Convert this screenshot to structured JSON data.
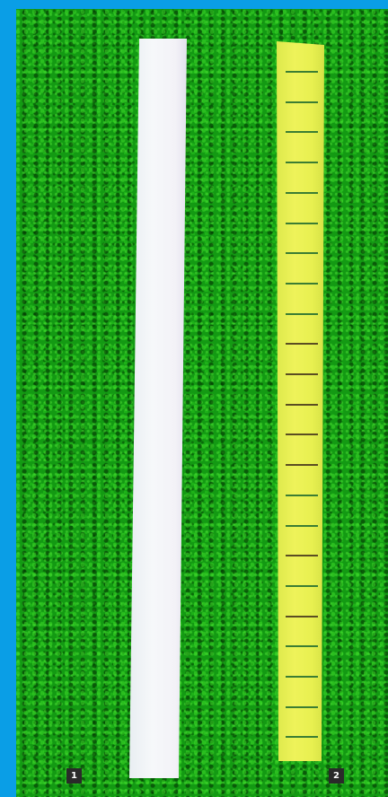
{
  "labels": {
    "strip_1": "1",
    "strip_2": "2"
  },
  "scene": {
    "background_color": "#139a13",
    "frame_color": "#0a9ee6",
    "strip_1_color": "#f3f5f8",
    "strip_2_color": "#e8f050",
    "strip_2_tick_count": 23
  }
}
